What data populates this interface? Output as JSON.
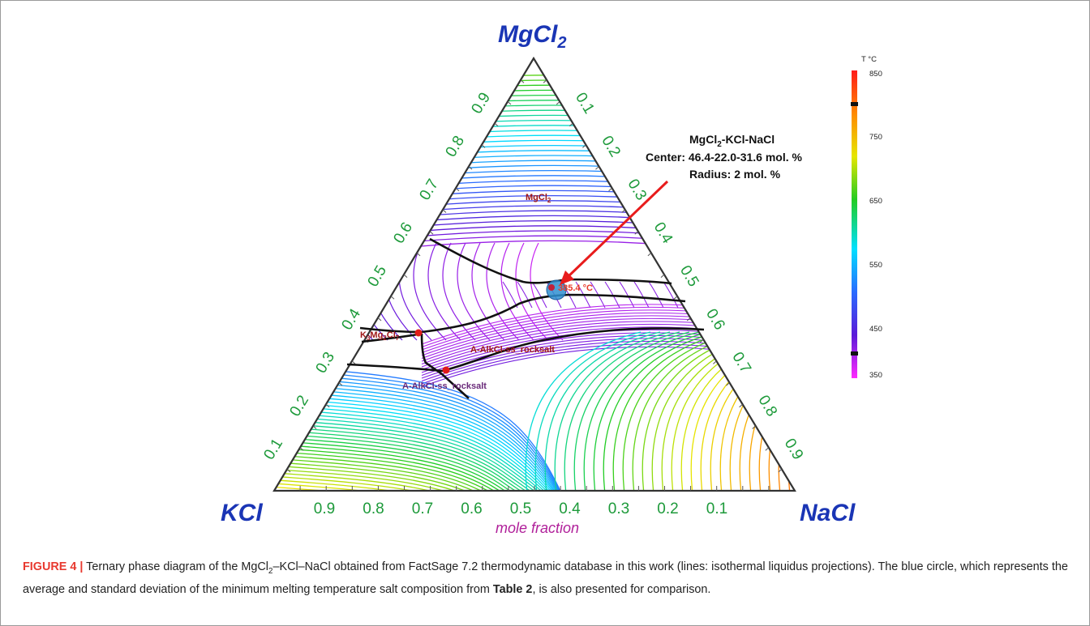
{
  "figure": {
    "vertices": {
      "top": {
        "main": "MgCl",
        "sub": "2"
      },
      "left": "KCl",
      "right": "NaCl"
    },
    "bottom_ticks": [
      "0.9",
      "0.8",
      "0.7",
      "0.6",
      "0.5",
      "0.4",
      "0.3",
      "0.2",
      "0.1"
    ],
    "left_ticks": [
      "0.9",
      "0.8",
      "0.7",
      "0.6",
      "0.5",
      "0.4",
      "0.3",
      "0.2",
      "0.1"
    ],
    "right_ticks": [
      "0.1",
      "0.2",
      "0.3",
      "0.4",
      "0.5",
      "0.6",
      "0.7",
      "0.8",
      "0.9"
    ],
    "xlabel": "mole fraction",
    "annotation": {
      "line1_a": "MgCl",
      "line1_sub": "2",
      "line1_b": "-KCl-NaCl",
      "line2": "Center: 46.4-22.0-31.6 mol. %",
      "line3": "Radius: 2 mol. %"
    },
    "region_labels": {
      "mgcl2": {
        "main": "MgCl",
        "sub": "2"
      },
      "k3mg2cl7": {
        "a": "K",
        "s1": "3",
        "b": "Mg",
        "s2": "2",
        "c": "Cl",
        "s3": "7"
      },
      "rocksalt_upper": "A-AlkCl-ss_rocksalt",
      "rocksalt_lower": "A-AlkCl-ss_rocksalt"
    },
    "eutectic_label": "385.4 °C",
    "colorbar": {
      "title": "T °C",
      "labels": [
        "850",
        "750",
        "650",
        "550",
        "450",
        "350"
      ]
    }
  },
  "colors": {
    "vertex": "#1a35b5",
    "tick": "#1d9a3a",
    "mole_fraction": "#b0209a",
    "arrow": "#e81c1c",
    "boundary": "#111111",
    "circle": "#2f8fd0",
    "region_label": "#a01818",
    "caption_label": "#e8392f"
  },
  "caption": {
    "label": "FIGURE 4 |",
    "text_a": " Ternary phase diagram of the MgCl",
    "sub": "2",
    "text_b": "–KCl–NaCl obtained from FactSage 7.2 thermodynamic database in this work (lines: isothermal liquidus projections). The blue circle, which represents the average and standard deviation of the minimum melting temperature salt composition from ",
    "table_ref": "Table 2",
    "text_c": ", is also presented for comparison."
  }
}
